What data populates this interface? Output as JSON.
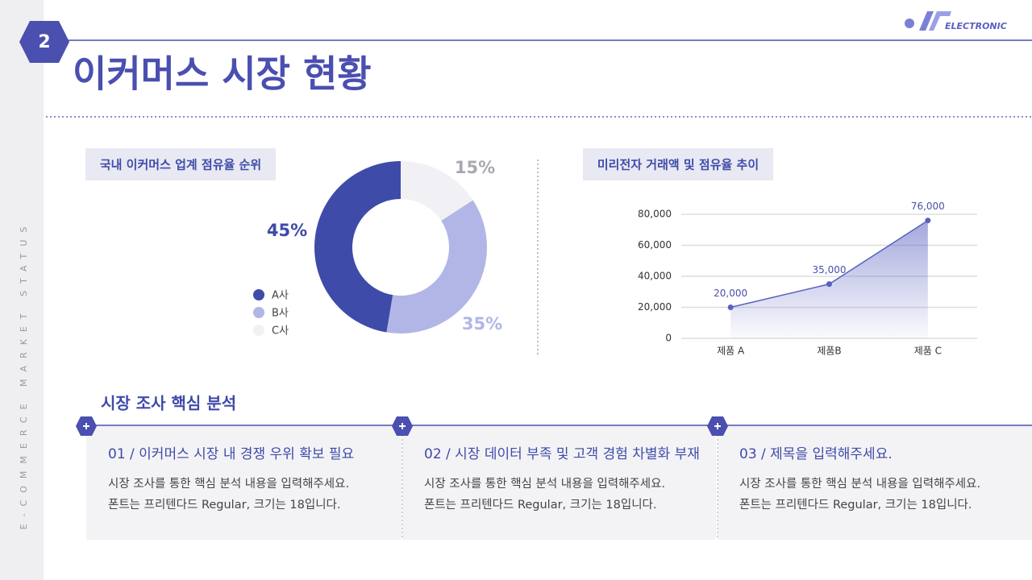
{
  "page_number": "2",
  "logo": "ELECTRONIC",
  "title": "이커머스 시장 현황",
  "side_text": "E-COMMERCE MARKET STATUS",
  "chart_data": [
    {
      "type": "pie",
      "title": "국내 이커머스 업계 점유율 순위",
      "categories": [
        "A사",
        "B사",
        "C사"
      ],
      "values": [
        45,
        35,
        15
      ],
      "value_labels": [
        "45%",
        "35%",
        "15%"
      ],
      "colors": [
        "#3f4ba8",
        "#b1b6e6",
        "#f1f1f5"
      ]
    },
    {
      "type": "line",
      "title": "미리전자 거래액 및 점유율 추이",
      "categories": [
        "제품 A",
        "제품B",
        "제품 C"
      ],
      "values": [
        20000,
        35000,
        76000
      ],
      "value_labels": [
        "20,000",
        "35,000",
        "76,000"
      ],
      "color": "#5a60c0",
      "ylim": [
        0,
        80000
      ],
      "yticks": [
        0,
        {
          "value": 20000,
          "label": "20,000"
        },
        {
          "value": 40000,
          "label": "40,000"
        },
        {
          "value": 60000,
          "label": "60,000"
        },
        {
          "value": 80000,
          "label": "80,000"
        }
      ],
      "grid": true
    }
  ],
  "analysis": {
    "title": "시장 조사 핵심 분석",
    "items": [
      {
        "heading": "01 / 이커머스 시장 내 경쟁 우위 확보 필요",
        "lines": [
          "시장 조사를 통한 핵심 분석 내용을 입력해주세요.",
          "폰트는 프리텐다드 Regular, 크기는 18입니다."
        ]
      },
      {
        "heading": "02 / 시장 데이터 부족 및 고객 경험 차별화 부재",
        "lines": [
          "시장 조사를 통한 핵심 분석 내용을 입력해주세요.",
          "폰트는 프리텐다드 Regular, 크기는 18입니다."
        ]
      },
      {
        "heading": "03 / 제목을 입력해주세요.",
        "lines": [
          "시장 조사를 통한 핵심 분석 내용을 입력해주세요.",
          "폰트는 프리텐다드 Regular, 크기는 18입니다."
        ]
      }
    ]
  }
}
